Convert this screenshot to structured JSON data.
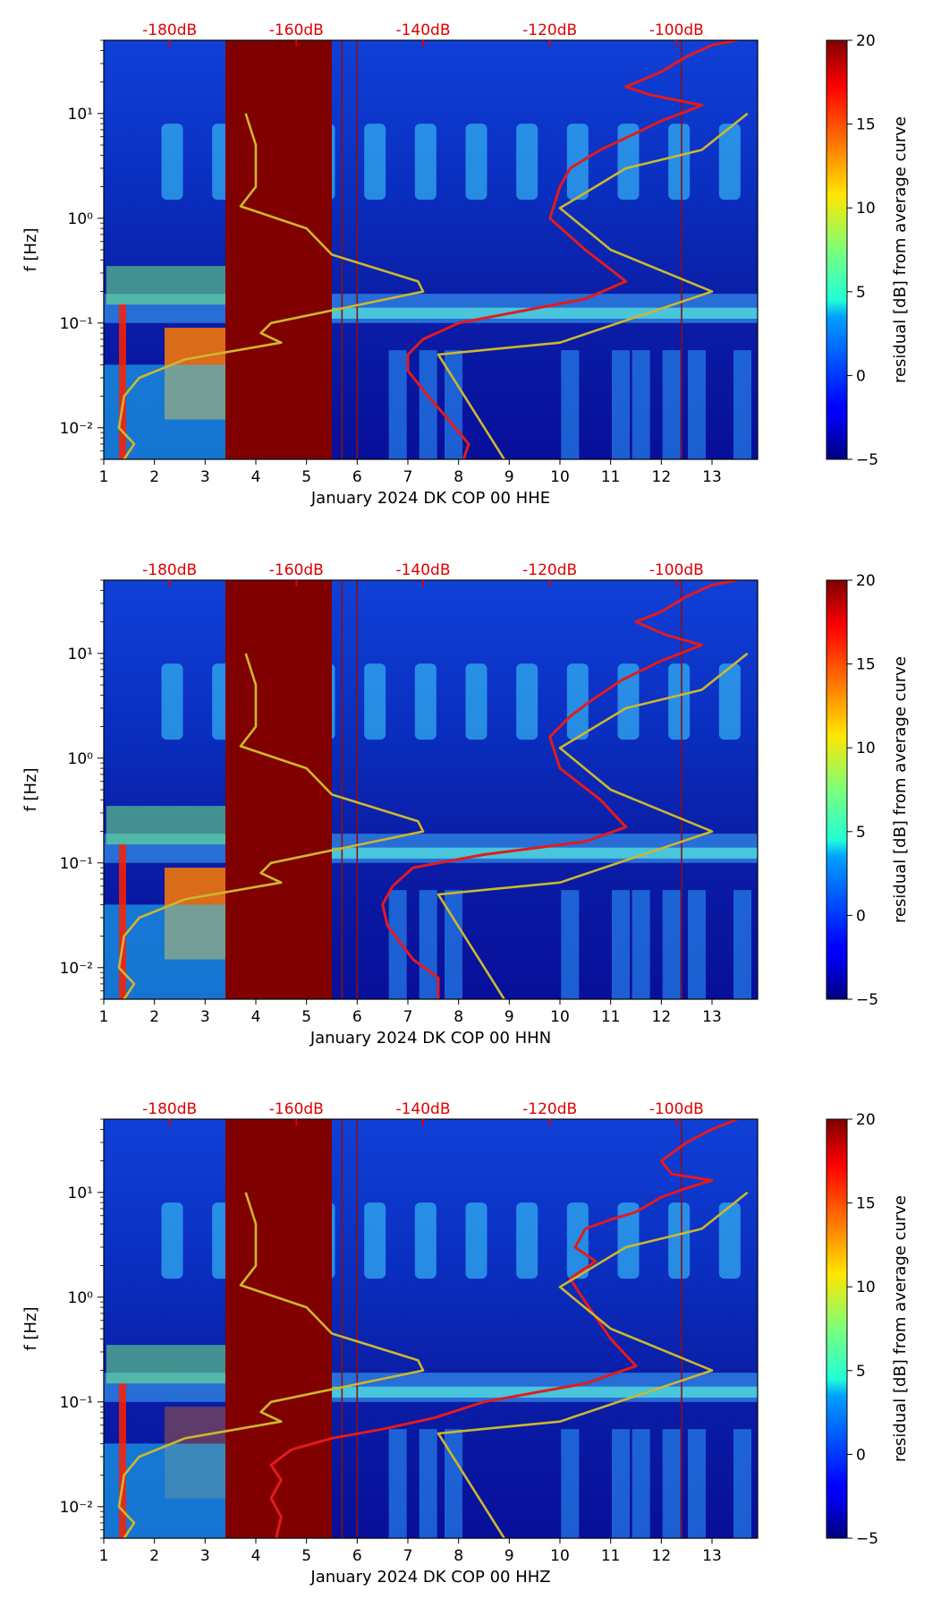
{
  "chart_data": [
    {
      "type": "heatmap",
      "xlabel": "January 2024 DK COP 00 HHE",
      "ylabel": "f [Hz]",
      "xlim": [
        1,
        13.9
      ],
      "ylim": [
        0.005,
        50
      ],
      "yscale": "log",
      "x_ticks": [
        "1",
        "2",
        "3",
        "4",
        "5",
        "6",
        "7",
        "8",
        "9",
        "10",
        "11",
        "12",
        "13"
      ],
      "y_ticks": [
        "10⁻²",
        "10⁻¹",
        "10⁰",
        "10¹"
      ],
      "top_axis_ticks": [
        "-180dB",
        "-160dB",
        "-140dB",
        "-120dB",
        "-100dB"
      ],
      "colorbar": {
        "label": "residual [dB] from average curve",
        "range": [
          -5,
          20
        ],
        "ticks": [
          "−5",
          "0",
          "5",
          "10",
          "15",
          "20"
        ]
      },
      "data_gap": [
        3.4,
        5.5
      ],
      "series": [
        {
          "color": "#e41a1c",
          "points": [
            [
              8.1,
              0.005
            ],
            [
              8.2,
              0.007
            ],
            [
              7.8,
              0.012
            ],
            [
              7.4,
              0.02
            ],
            [
              7.0,
              0.035
            ],
            [
              7.0,
              0.05
            ],
            [
              7.3,
              0.07
            ],
            [
              8.0,
              0.1
            ],
            [
              10.5,
              0.17
            ],
            [
              11.3,
              0.25
            ],
            [
              10.5,
              0.5
            ],
            [
              9.8,
              1.0
            ],
            [
              10.0,
              2.0
            ],
            [
              10.2,
              3.0
            ],
            [
              10.8,
              4.5
            ],
            [
              11.5,
              6.5
            ],
            [
              12.0,
              8.5
            ],
            [
              12.5,
              10.5
            ],
            [
              12.8,
              12.0
            ],
            [
              11.8,
              15.0
            ],
            [
              11.3,
              18.0
            ],
            [
              12.0,
              25.0
            ],
            [
              12.5,
              35.0
            ],
            [
              13.0,
              45.0
            ],
            [
              13.5,
              50.0
            ]
          ]
        },
        {
          "color": "#cdb72e",
          "points": [
            [
              1.4,
              0.005
            ],
            [
              1.6,
              0.007
            ],
            [
              1.3,
              0.01
            ],
            [
              1.4,
              0.02
            ],
            [
              1.7,
              0.03
            ],
            [
              2.6,
              0.045
            ],
            [
              4.5,
              0.065
            ],
            [
              4.1,
              0.08
            ],
            [
              4.3,
              0.1
            ],
            [
              7.3,
              0.2
            ],
            [
              7.2,
              0.25
            ],
            [
              5.5,
              0.45
            ],
            [
              5.0,
              0.8
            ],
            [
              3.7,
              1.3
            ],
            [
              4.0,
              2.0
            ],
            [
              4.0,
              5.0
            ],
            [
              3.8,
              10.0
            ]
          ]
        },
        {
          "color": "#cdb72e",
          "points": [
            [
              8.9,
              0.005
            ],
            [
              7.6,
              0.05
            ],
            [
              10.0,
              0.065
            ],
            [
              13.0,
              0.2
            ],
            [
              11.0,
              0.5
            ],
            [
              10.0,
              1.25
            ],
            [
              11.3,
              3.0
            ],
            [
              12.8,
              4.5
            ],
            [
              13.7,
              10.0
            ]
          ]
        }
      ]
    },
    {
      "type": "heatmap",
      "xlabel": "January 2024 DK COP 00 HHN",
      "ylabel": "f [Hz]",
      "xlim": [
        1,
        13.9
      ],
      "ylim": [
        0.005,
        50
      ],
      "yscale": "log",
      "x_ticks": [
        "1",
        "2",
        "3",
        "4",
        "5",
        "6",
        "7",
        "8",
        "9",
        "10",
        "11",
        "12",
        "13"
      ],
      "y_ticks": [
        "10⁻²",
        "10⁻¹",
        "10⁰",
        "10¹"
      ],
      "top_axis_ticks": [
        "-180dB",
        "-160dB",
        "-140dB",
        "-120dB",
        "-100dB"
      ],
      "colorbar": {
        "label": "residual [dB] from average curve",
        "range": [
          -5,
          20
        ],
        "ticks": [
          "−5",
          "0",
          "5",
          "10",
          "15",
          "20"
        ]
      },
      "data_gap": [
        3.4,
        5.5
      ],
      "series": [
        {
          "color": "#e41a1c",
          "points": [
            [
              7.6,
              0.005
            ],
            [
              7.6,
              0.008
            ],
            [
              7.1,
              0.012
            ],
            [
              6.6,
              0.025
            ],
            [
              6.5,
              0.04
            ],
            [
              6.7,
              0.06
            ],
            [
              7.1,
              0.09
            ],
            [
              8.5,
              0.12
            ],
            [
              10.5,
              0.16
            ],
            [
              11.3,
              0.22
            ],
            [
              10.8,
              0.4
            ],
            [
              10.0,
              0.8
            ],
            [
              9.8,
              1.6
            ],
            [
              10.2,
              2.5
            ],
            [
              10.6,
              3.5
            ],
            [
              11.2,
              5.5
            ],
            [
              12.0,
              8.5
            ],
            [
              12.8,
              12.0
            ],
            [
              12.1,
              15.0
            ],
            [
              11.5,
              20.0
            ],
            [
              12.0,
              25.0
            ],
            [
              12.5,
              35.0
            ],
            [
              13.0,
              45.0
            ],
            [
              13.5,
              50.0
            ]
          ]
        },
        {
          "color": "#cdb72e",
          "points": [
            [
              1.4,
              0.005
            ],
            [
              1.6,
              0.007
            ],
            [
              1.3,
              0.01
            ],
            [
              1.4,
              0.02
            ],
            [
              1.7,
              0.03
            ],
            [
              2.6,
              0.045
            ],
            [
              4.5,
              0.065
            ],
            [
              4.1,
              0.08
            ],
            [
              4.3,
              0.1
            ],
            [
              7.3,
              0.2
            ],
            [
              7.2,
              0.25
            ],
            [
              5.5,
              0.45
            ],
            [
              5.0,
              0.8
            ],
            [
              3.7,
              1.3
            ],
            [
              4.0,
              2.0
            ],
            [
              4.0,
              5.0
            ],
            [
              3.8,
              10.0
            ]
          ]
        },
        {
          "color": "#cdb72e",
          "points": [
            [
              8.9,
              0.005
            ],
            [
              7.6,
              0.05
            ],
            [
              10.0,
              0.065
            ],
            [
              13.0,
              0.2
            ],
            [
              11.0,
              0.5
            ],
            [
              10.0,
              1.25
            ],
            [
              11.3,
              3.0
            ],
            [
              12.8,
              4.5
            ],
            [
              13.7,
              10.0
            ]
          ]
        }
      ]
    },
    {
      "type": "heatmap",
      "xlabel": "January 2024 DK COP 00 HHZ",
      "ylabel": "f [Hz]",
      "xlim": [
        1,
        13.9
      ],
      "ylim": [
        0.005,
        50
      ],
      "yscale": "log",
      "x_ticks": [
        "1",
        "2",
        "3",
        "4",
        "5",
        "6",
        "7",
        "8",
        "9",
        "10",
        "11",
        "12",
        "13"
      ],
      "y_ticks": [
        "10⁻²",
        "10⁻¹",
        "10⁰",
        "10¹"
      ],
      "top_axis_ticks": [
        "-180dB",
        "-160dB",
        "-140dB",
        "-120dB",
        "-100dB"
      ],
      "colorbar": {
        "label": "residual [dB] from average curve",
        "range": [
          -5,
          20
        ],
        "ticks": [
          "−5",
          "0",
          "5",
          "10",
          "15",
          "20"
        ]
      },
      "data_gap": [
        3.4,
        5.5
      ],
      "series": [
        {
          "color": "#e41a1c",
          "points": [
            [
              4.4,
              0.005
            ],
            [
              4.5,
              0.008
            ],
            [
              4.3,
              0.012
            ],
            [
              4.5,
              0.018
            ],
            [
              4.3,
              0.025
            ],
            [
              4.7,
              0.035
            ],
            [
              5.5,
              0.045
            ],
            [
              6.5,
              0.055
            ],
            [
              7.5,
              0.07
            ],
            [
              8.5,
              0.1
            ],
            [
              10.5,
              0.15
            ],
            [
              11.5,
              0.22
            ],
            [
              11.0,
              0.4
            ],
            [
              10.5,
              0.9
            ],
            [
              10.2,
              1.5
            ],
            [
              10.7,
              2.2
            ],
            [
              10.3,
              3.0
            ],
            [
              10.5,
              4.5
            ],
            [
              11.0,
              5.5
            ],
            [
              11.5,
              6.5
            ],
            [
              12.0,
              9.0
            ],
            [
              12.5,
              11.0
            ],
            [
              13.0,
              13.0
            ],
            [
              12.2,
              15.0
            ],
            [
              12.0,
              20.0
            ],
            [
              12.5,
              30.0
            ],
            [
              13.0,
              40.0
            ],
            [
              13.5,
              50.0
            ]
          ]
        },
        {
          "color": "#cdb72e",
          "points": [
            [
              1.4,
              0.005
            ],
            [
              1.6,
              0.007
            ],
            [
              1.3,
              0.01
            ],
            [
              1.4,
              0.02
            ],
            [
              1.7,
              0.03
            ],
            [
              2.6,
              0.045
            ],
            [
              4.5,
              0.065
            ],
            [
              4.1,
              0.08
            ],
            [
              4.3,
              0.1
            ],
            [
              7.3,
              0.2
            ],
            [
              7.2,
              0.25
            ],
            [
              5.5,
              0.45
            ],
            [
              5.0,
              0.8
            ],
            [
              3.7,
              1.3
            ],
            [
              4.0,
              2.0
            ],
            [
              4.0,
              5.0
            ],
            [
              3.8,
              10.0
            ]
          ]
        },
        {
          "color": "#cdb72e",
          "points": [
            [
              8.9,
              0.005
            ],
            [
              7.6,
              0.05
            ],
            [
              10.0,
              0.065
            ],
            [
              13.0,
              0.2
            ],
            [
              11.0,
              0.5
            ],
            [
              10.0,
              1.25
            ],
            [
              11.3,
              3.0
            ],
            [
              12.8,
              4.5
            ],
            [
              13.7,
              10.0
            ]
          ]
        }
      ]
    }
  ]
}
